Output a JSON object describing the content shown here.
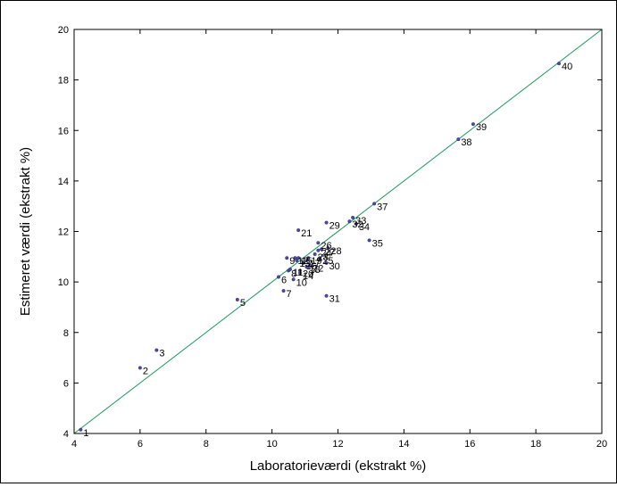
{
  "chart_data": {
    "type": "scatter",
    "title": "",
    "xlabel": "Laboratorieværdi (ekstrakt %)",
    "ylabel": "Estimeret værdi (ekstrakt %)",
    "xlim": [
      4,
      20
    ],
    "ylim": [
      4,
      20
    ],
    "xticks": [
      4,
      6,
      8,
      10,
      12,
      14,
      16,
      18,
      20
    ],
    "yticks": [
      4,
      6,
      8,
      10,
      12,
      14,
      16,
      18,
      20
    ],
    "grid": false,
    "reference_line": {
      "x": [
        4,
        20
      ],
      "y": [
        4,
        20
      ],
      "color": "#1a9a5a"
    },
    "point_color": "#4a4aa8",
    "points": [
      {
        "label": "1",
        "x": 4.2,
        "y": 4.15
      },
      {
        "label": "2",
        "x": 6.0,
        "y": 6.6
      },
      {
        "label": "3",
        "x": 6.5,
        "y": 7.3
      },
      {
        "label": "5",
        "x": 8.95,
        "y": 9.3
      },
      {
        "label": "6",
        "x": 10.2,
        "y": 10.2
      },
      {
        "label": "7",
        "x": 10.35,
        "y": 9.65
      },
      {
        "label": "8",
        "x": 10.5,
        "y": 10.45
      },
      {
        "label": "9",
        "x": 10.45,
        "y": 10.95
      },
      {
        "label": "10",
        "x": 10.65,
        "y": 10.1
      },
      {
        "label": "11",
        "x": 10.55,
        "y": 10.5
      },
      {
        "label": "12",
        "x": 10.7,
        "y": 10.95
      },
      {
        "label": "13",
        "x": 10.75,
        "y": 10.85
      },
      {
        "label": "14",
        "x": 10.85,
        "y": 10.35
      },
      {
        "label": "15",
        "x": 10.8,
        "y": 10.95
      },
      {
        "label": "16",
        "x": 10.95,
        "y": 10.75
      },
      {
        "label": "17",
        "x": 11.05,
        "y": 10.85
      },
      {
        "label": "18",
        "x": 11.05,
        "y": 10.6
      },
      {
        "label": "19",
        "x": 11.1,
        "y": 10.95
      },
      {
        "label": "20",
        "x": 10.85,
        "y": 10.45
      },
      {
        "label": "21",
        "x": 10.8,
        "y": 12.05
      },
      {
        "label": "22",
        "x": 11.15,
        "y": 10.65
      },
      {
        "label": "23",
        "x": 11.3,
        "y": 11.1
      },
      {
        "label": "24",
        "x": 11.4,
        "y": 11.25
      },
      {
        "label": "25",
        "x": 11.45,
        "y": 10.95
      },
      {
        "label": "26",
        "x": 11.4,
        "y": 11.55
      },
      {
        "label": "27",
        "x": 11.5,
        "y": 11.3
      },
      {
        "label": "28",
        "x": 11.7,
        "y": 11.35
      },
      {
        "label": "29",
        "x": 11.65,
        "y": 12.35
      },
      {
        "label": "30",
        "x": 11.65,
        "y": 10.75
      },
      {
        "label": "31",
        "x": 11.65,
        "y": 9.45
      },
      {
        "label": "32",
        "x": 12.35,
        "y": 12.4
      },
      {
        "label": "33",
        "x": 12.45,
        "y": 12.55
      },
      {
        "label": "34",
        "x": 12.55,
        "y": 12.3
      },
      {
        "label": "35",
        "x": 12.95,
        "y": 11.65
      },
      {
        "label": "37",
        "x": 13.1,
        "y": 13.1
      },
      {
        "label": "38",
        "x": 15.65,
        "y": 15.65
      },
      {
        "label": "39",
        "x": 16.1,
        "y": 16.25
      },
      {
        "label": "40",
        "x": 18.7,
        "y": 18.65
      }
    ]
  }
}
